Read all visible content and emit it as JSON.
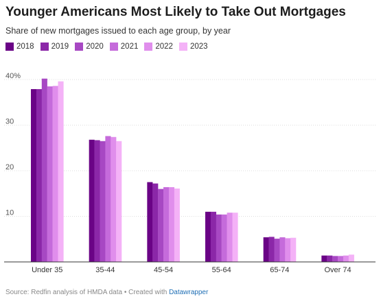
{
  "header": {
    "title": "Younger Americans Most Likely to Take Out Mortgages",
    "subtitle": "Share of new mortgages issued to each age group, by year"
  },
  "footer": {
    "source": "Source: Redfin analysis of HMDA data • Created with",
    "credit": "Datawrapper"
  },
  "chart_data": {
    "type": "bar",
    "title": "Younger Americans Most Likely to Take Out Mortgages",
    "subtitle": "Share of new mortgages issued to each age group, by year",
    "categories": [
      "Under 35",
      "35-44",
      "45-54",
      "55-64",
      "65-74",
      "Over 74"
    ],
    "series": [
      {
        "name": "2018",
        "color": "#6a0386",
        "values": [
          37.9,
          26.8,
          17.5,
          11.0,
          5.4,
          1.4
        ]
      },
      {
        "name": "2019",
        "color": "#8b27a8",
        "values": [
          37.9,
          26.7,
          17.2,
          11.0,
          5.5,
          1.4
        ]
      },
      {
        "name": "2020",
        "color": "#a748c3",
        "values": [
          40.2,
          26.5,
          16.0,
          10.4,
          5.1,
          1.3
        ]
      },
      {
        "name": "2021",
        "color": "#c56bdb",
        "values": [
          38.5,
          27.6,
          16.4,
          10.4,
          5.4,
          1.3
        ]
      },
      {
        "name": "2022",
        "color": "#e08eec",
        "values": [
          38.6,
          27.4,
          16.4,
          10.8,
          5.2,
          1.4
        ]
      },
      {
        "name": "2023",
        "color": "#f4b2f7",
        "values": [
          39.6,
          26.5,
          16.1,
          10.8,
          5.3,
          1.6
        ]
      }
    ],
    "y_ticks": [
      {
        "value": 10,
        "label": "10"
      },
      {
        "value": 20,
        "label": "20"
      },
      {
        "value": 30,
        "label": "30"
      },
      {
        "value": 40,
        "label": "40%"
      }
    ],
    "ylim": [
      0,
      40
    ],
    "grid": true,
    "legend_position": "top-left"
  }
}
